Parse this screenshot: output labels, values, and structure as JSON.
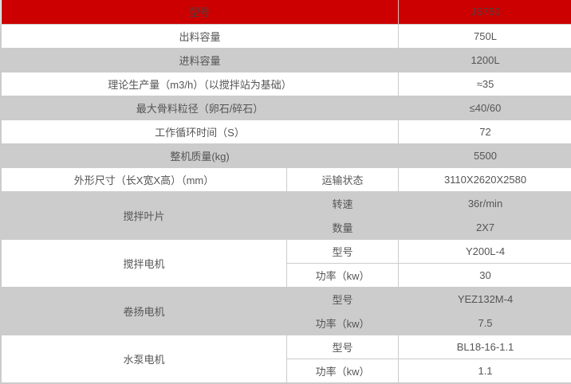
{
  "table": {
    "header": {
      "label": "型号",
      "value": "JS750"
    },
    "rows": [
      {
        "label": "出料容量",
        "value": "750L"
      },
      {
        "label": "进料容量",
        "value": "1200L"
      },
      {
        "label": "理论生产量（m3/h）（以搅拌站为基础）",
        "value": "≈35"
      },
      {
        "label": "最大骨料粒径（卵石/碎石）",
        "value": "≤40/60"
      },
      {
        "label": "工作循环时间（S）",
        "value": "72"
      },
      {
        "label": "整机质量(kg)",
        "value": "5500"
      }
    ],
    "dim_row": {
      "label": "外形尺寸（长X宽X高）（mm）",
      "sub": "运输状态",
      "value": "3110X2620X2580"
    },
    "groups": [
      {
        "label": "搅拌叶片",
        "subs": [
          {
            "label": "转速",
            "value": "36r/min"
          },
          {
            "label": "数量",
            "value": "2X7"
          }
        ]
      },
      {
        "label": "搅拌电机",
        "subs": [
          {
            "label": "型号",
            "value": "Y200L-4"
          },
          {
            "label": "功率（kw）",
            "value": "30"
          }
        ]
      },
      {
        "label": "卷扬电机",
        "subs": [
          {
            "label": "型号",
            "value": "YEZ132M-4"
          },
          {
            "label": "功率（kw）",
            "value": "7.5"
          }
        ]
      },
      {
        "label": "水泵电机",
        "subs": [
          {
            "label": "型号",
            "value": "BL18-16-1.1"
          },
          {
            "label": "功率（kw）",
            "value": "1.1"
          }
        ]
      }
    ],
    "colors": {
      "header_bg": "#cc0000",
      "stripe_bg": "#cccccc",
      "border": "#cccccc",
      "text": "#555555",
      "header_text": "#4a4242"
    }
  }
}
